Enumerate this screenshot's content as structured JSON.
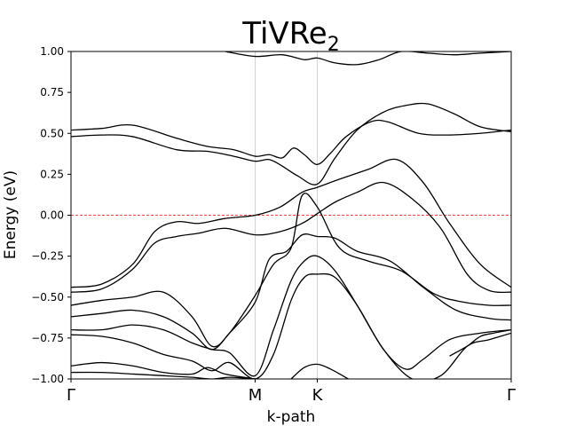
{
  "chart_data": {
    "type": "line",
    "title": {
      "base": "TiVRe",
      "subscript": "2"
    },
    "xlabel": "k-path",
    "ylabel": "Energy (eV)",
    "ylim": [
      -1.0,
      1.0
    ],
    "xlim": [
      0,
      2.0
    ],
    "x_ticks": [
      {
        "label": "Γ",
        "value": 0.0
      },
      {
        "label": "M",
        "value": 0.837
      },
      {
        "label": "K",
        "value": 1.119
      },
      {
        "label": "Γ",
        "value": 2.0
      }
    ],
    "y_tick_labels": [
      "1.00",
      "0.75",
      "0.50",
      "0.25",
      "0.00",
      "−0.25",
      "−0.50",
      "−0.75",
      "−1.00"
    ],
    "y_tick_values": [
      1.0,
      0.75,
      0.5,
      0.25,
      0.0,
      -0.25,
      -0.5,
      -0.75,
      -1.0
    ],
    "vertical_gridlines_at": [
      0.837,
      1.119
    ],
    "fermi_level": {
      "value": 0.0,
      "color": "#ff0000",
      "style": "dashed"
    },
    "line_color": "#000000",
    "series": [
      {
        "x": [
          0,
          0.14,
          0.28,
          0.48,
          0.62,
          0.74,
          0.837,
          0.9,
          0.96,
          1.01,
          1.06,
          1.119,
          1.18,
          1.25,
          1.36,
          1.44,
          1.58,
          1.72,
          1.86,
          2.0
        ],
        "y": [
          0.52,
          0.53,
          0.55,
          0.47,
          0.42,
          0.4,
          0.36,
          0.37,
          0.35,
          0.41,
          0.37,
          0.31,
          0.38,
          0.48,
          0.57,
          0.57,
          0.5,
          0.49,
          0.5,
          0.52
        ]
      },
      {
        "x": [
          0,
          0.14,
          0.28,
          0.48,
          0.62,
          0.74,
          0.837,
          0.9,
          0.96,
          1.03,
          1.119,
          1.2,
          1.3,
          1.42,
          1.52,
          1.62,
          1.74,
          1.86,
          2.0
        ],
        "y": [
          0.48,
          0.49,
          0.48,
          0.4,
          0.39,
          0.36,
          0.33,
          0.34,
          0.3,
          0.24,
          0.19,
          0.35,
          0.52,
          0.63,
          0.67,
          0.68,
          0.62,
          0.54,
          0.51
        ]
      },
      {
        "x": [
          0,
          0.14,
          0.28,
          0.38,
          0.48,
          0.58,
          0.7,
          0.837,
          0.95,
          1.05,
          1.119,
          1.22,
          1.35,
          1.48,
          1.6,
          1.72,
          1.86,
          2.0
        ],
        "y": [
          -0.44,
          -0.42,
          -0.3,
          -0.1,
          -0.04,
          -0.05,
          -0.02,
          0.0,
          0.05,
          0.14,
          0.17,
          0.22,
          0.28,
          0.34,
          0.2,
          -0.05,
          -0.3,
          -0.44
        ]
      },
      {
        "x": [
          0,
          0.14,
          0.28,
          0.38,
          0.48,
          0.58,
          0.7,
          0.837,
          0.95,
          1.05,
          1.119,
          1.2,
          1.3,
          1.42,
          1.55,
          1.68,
          1.8,
          1.9,
          2.0
        ],
        "y": [
          -0.47,
          -0.45,
          -0.33,
          -0.17,
          -0.13,
          -0.11,
          -0.08,
          -0.12,
          -0.1,
          -0.05,
          0.01,
          0.08,
          0.14,
          0.2,
          0.1,
          -0.08,
          -0.36,
          -0.46,
          -0.47
        ]
      },
      {
        "x": [
          0,
          0.14,
          0.28,
          0.42,
          0.55,
          0.64,
          0.72,
          0.837,
          0.92,
          1.0,
          1.05,
          1.119,
          1.22,
          1.35,
          1.5,
          1.65,
          1.78,
          1.9,
          2.0
        ],
        "y": [
          -0.55,
          -0.52,
          -0.5,
          -0.47,
          -0.62,
          -0.8,
          -0.72,
          -0.49,
          -0.3,
          -0.2,
          0.12,
          0.05,
          -0.2,
          -0.28,
          -0.34,
          -0.48,
          -0.53,
          -0.55,
          -0.55
        ]
      },
      {
        "x": [
          0,
          0.14,
          0.28,
          0.42,
          0.55,
          0.64,
          0.72,
          0.837,
          0.9,
          0.98,
          1.05,
          1.119,
          1.2,
          1.3,
          1.45,
          1.6,
          1.75,
          1.9,
          2.0
        ],
        "y": [
          -0.62,
          -0.6,
          -0.58,
          -0.62,
          -0.72,
          -0.82,
          -0.72,
          -0.53,
          -0.27,
          -0.22,
          -0.12,
          -0.13,
          -0.14,
          -0.22,
          -0.28,
          -0.44,
          -0.58,
          -0.63,
          -0.64
        ]
      },
      {
        "x": [
          0,
          0.14,
          0.28,
          0.42,
          0.55,
          0.64,
          0.72,
          0.837,
          0.92,
          1.0,
          1.06,
          1.119,
          1.2,
          1.3,
          1.42,
          1.52,
          1.6,
          1.72,
          1.86,
          2.0
        ],
        "y": [
          -0.7,
          -0.7,
          -0.67,
          -0.7,
          -0.78,
          -0.82,
          -0.84,
          -0.98,
          -0.7,
          -0.4,
          -0.28,
          -0.25,
          -0.34,
          -0.55,
          -0.82,
          -0.94,
          -0.88,
          -0.76,
          -0.72,
          -0.7
        ]
      },
      {
        "x": [
          0,
          0.14,
          0.28,
          0.42,
          0.55,
          0.64,
          0.72,
          0.837,
          0.92,
          1.0,
          1.06,
          1.119,
          1.2,
          1.3,
          1.42,
          1.55,
          1.68,
          1.8,
          1.9,
          2.0
        ],
        "y": [
          -0.73,
          -0.74,
          -0.78,
          -0.85,
          -0.89,
          -0.95,
          -0.9,
          -1.0,
          -0.85,
          -0.52,
          -0.38,
          -0.36,
          -0.38,
          -0.55,
          -0.82,
          -1.0,
          -0.98,
          -0.8,
          -0.76,
          -0.72
        ]
      },
      {
        "x": [
          0,
          0.14,
          0.28,
          0.42,
          0.55,
          0.62,
          0.7,
          0.837
        ],
        "y": [
          -0.92,
          -0.9,
          -0.92,
          -0.96,
          -0.97,
          -0.93,
          -0.97,
          -1.0
        ]
      },
      {
        "x": [
          1.0,
          1.06,
          1.119,
          1.18,
          1.26
        ],
        "y": [
          -1.0,
          -0.93,
          -0.91,
          -0.94,
          -1.0
        ]
      },
      {
        "x": [
          0.7,
          0.837,
          0.96,
          1.06,
          1.119,
          1.2,
          1.3,
          1.4,
          1.5,
          1.62,
          1.74,
          1.86,
          2.0
        ],
        "y": [
          1.0,
          0.97,
          0.98,
          0.95,
          0.96,
          0.93,
          0.92,
          0.95,
          1.0,
          0.99,
          0.98,
          0.99,
          1.0
        ]
      },
      {
        "x": [
          0,
          0.14,
          0.28,
          0.42,
          0.55,
          0.64,
          0.72,
          0.837
        ],
        "y": [
          -0.96,
          -0.96,
          -0.97,
          -0.98,
          -0.99,
          -1.0,
          -0.99,
          -1.0
        ]
      },
      {
        "x": [
          1.72,
          1.8,
          1.86,
          1.92,
          2.0
        ],
        "y": [
          -0.86,
          -0.8,
          -0.74,
          -0.72,
          -0.7
        ]
      }
    ]
  }
}
